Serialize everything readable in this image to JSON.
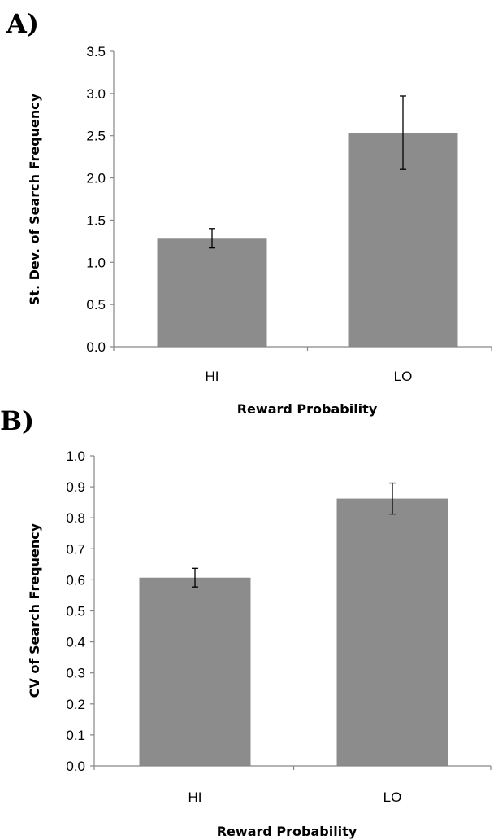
{
  "chart_data": [
    {
      "type": "bar",
      "panel_label": "A)",
      "categories": [
        "HI",
        "LO"
      ],
      "values": [
        1.28,
        2.53
      ],
      "error_low": [
        1.17,
        2.1
      ],
      "error_high": [
        1.4,
        2.97
      ],
      "ylabel": "St. Dev. of Search Frequency",
      "xlabel": "Reward Probability",
      "ylim": [
        0,
        3.5
      ],
      "yticks": [
        "0.0",
        "0.5",
        "1.0",
        "1.5",
        "2.0",
        "2.5",
        "3.0",
        "3.5"
      ],
      "bar_color": "#8c8c8c"
    },
    {
      "type": "bar",
      "panel_label": "B)",
      "categories": [
        "HI",
        "LO"
      ],
      "values": [
        0.607,
        0.862
      ],
      "error_low": [
        0.577,
        0.812
      ],
      "error_high": [
        0.637,
        0.912
      ],
      "ylabel": "CV of Search Frequency",
      "xlabel": "Reward Probability",
      "ylim": [
        0,
        1.0
      ],
      "yticks": [
        "0.0",
        "0.1",
        "0.2",
        "0.3",
        "0.4",
        "0.5",
        "0.6",
        "0.7",
        "0.8",
        "0.9",
        "1.0"
      ],
      "bar_color": "#8c8c8c"
    }
  ]
}
